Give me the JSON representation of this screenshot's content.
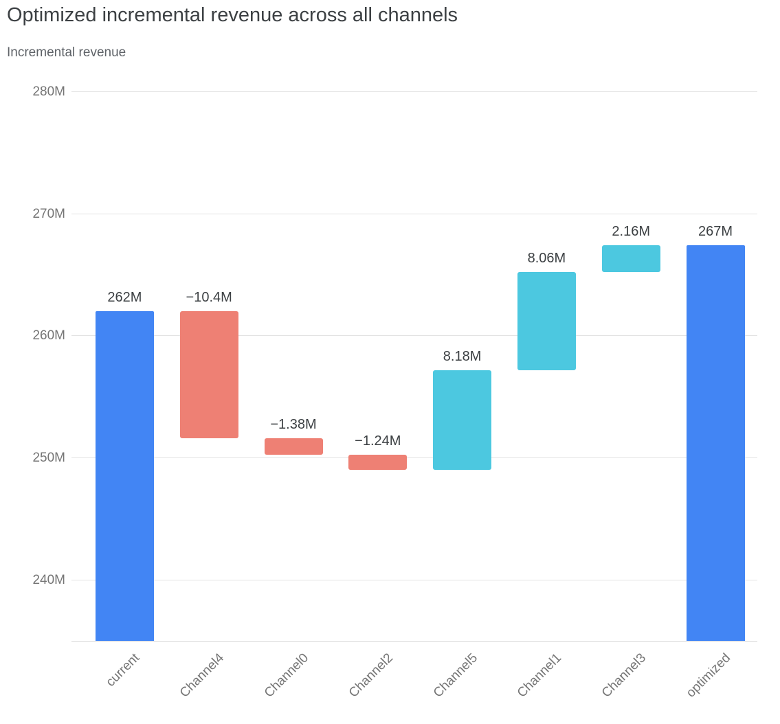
{
  "chart_data": {
    "type": "waterfall",
    "title": "Optimized incremental revenue across all channels",
    "subtitle": "Incremental revenue",
    "ylabel": "Incremental revenue",
    "ylim": [
      235,
      281
    ],
    "grid": true,
    "yticks": [
      {
        "value": 240,
        "label": "240M"
      },
      {
        "value": 250,
        "label": "250M"
      },
      {
        "value": 260,
        "label": "260M"
      },
      {
        "value": 270,
        "label": "270M"
      },
      {
        "value": 280,
        "label": "280M"
      }
    ],
    "colors": {
      "total": "#4285f4",
      "decrease": "#ee8074",
      "increase": "#4cc8e0"
    },
    "bars": [
      {
        "category": "current",
        "kind": "total",
        "start": 235,
        "end": 262,
        "label": "262M"
      },
      {
        "category": "Channel4",
        "kind": "decrease",
        "start": 262,
        "end": 251.6,
        "label": "−10.4M"
      },
      {
        "category": "Channel0",
        "kind": "decrease",
        "start": 251.6,
        "end": 250.22,
        "label": "−1.38M"
      },
      {
        "category": "Channel2",
        "kind": "decrease",
        "start": 250.22,
        "end": 248.98,
        "label": "−1.24M"
      },
      {
        "category": "Channel5",
        "kind": "increase",
        "start": 248.98,
        "end": 257.16,
        "label": "8.18M"
      },
      {
        "category": "Channel1",
        "kind": "increase",
        "start": 257.16,
        "end": 265.22,
        "label": "8.06M"
      },
      {
        "category": "Channel3",
        "kind": "increase",
        "start": 265.22,
        "end": 267.38,
        "label": "2.16M"
      },
      {
        "category": "optimized",
        "kind": "total",
        "start": 235,
        "end": 267.38,
        "label": "267M"
      }
    ],
    "deltas": {
      "current": 262,
      "Channel4": -10.4,
      "Channel0": -1.38,
      "Channel2": -1.24,
      "Channel5": 8.18,
      "Channel1": 8.06,
      "Channel3": 2.16,
      "optimized": 267.38
    }
  }
}
